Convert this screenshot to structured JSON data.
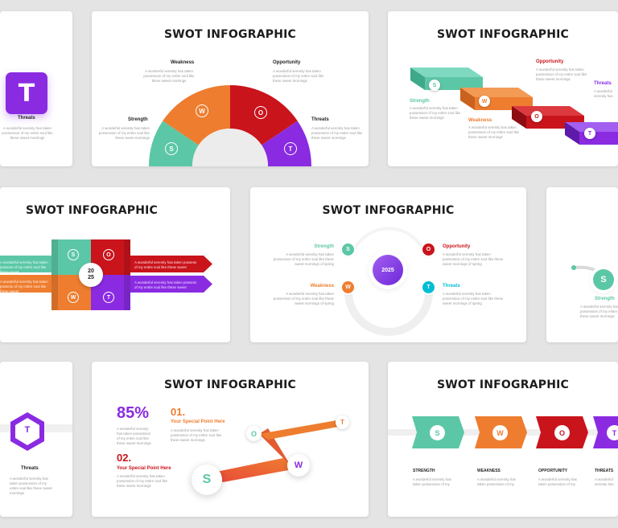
{
  "colors": {
    "s": "#5cc7a6",
    "w": "#ee7d2f",
    "o": "#c9141c",
    "t": "#8a2be2",
    "teal": "#00bcd4"
  },
  "title": "SWOT INFOGRAPHIC",
  "desc": "A wonderful serenity has taken possession of my entire soul like these sweet mornings",
  "desc_long": "A wonderful serenity has taken possession of my entire soul like these sweet mornings of spring",
  "desc_short": "A wonderful serenity has taken possess of my entire soul like these sweet",
  "labels": {
    "strength": "Strength",
    "weakness": "Weakness",
    "opportunity": "Opportunity",
    "threats": "Threats"
  },
  "labels_upper": {
    "strength": "STRENGTH",
    "weakness": "WEAKNESS",
    "opportunity": "OPPORTUNITY",
    "threats": "THREATS"
  },
  "letters": {
    "s": "S",
    "w": "W",
    "o": "O",
    "t": "T"
  },
  "year_a": "20",
  "year_b": "25",
  "year_full": "2025",
  "stat": {
    "percent": "85%",
    "p1_num": "01.",
    "p1_label": "Your Special Point Here",
    "p2_num": "02.",
    "p2_label": "Your Special Point Here"
  }
}
